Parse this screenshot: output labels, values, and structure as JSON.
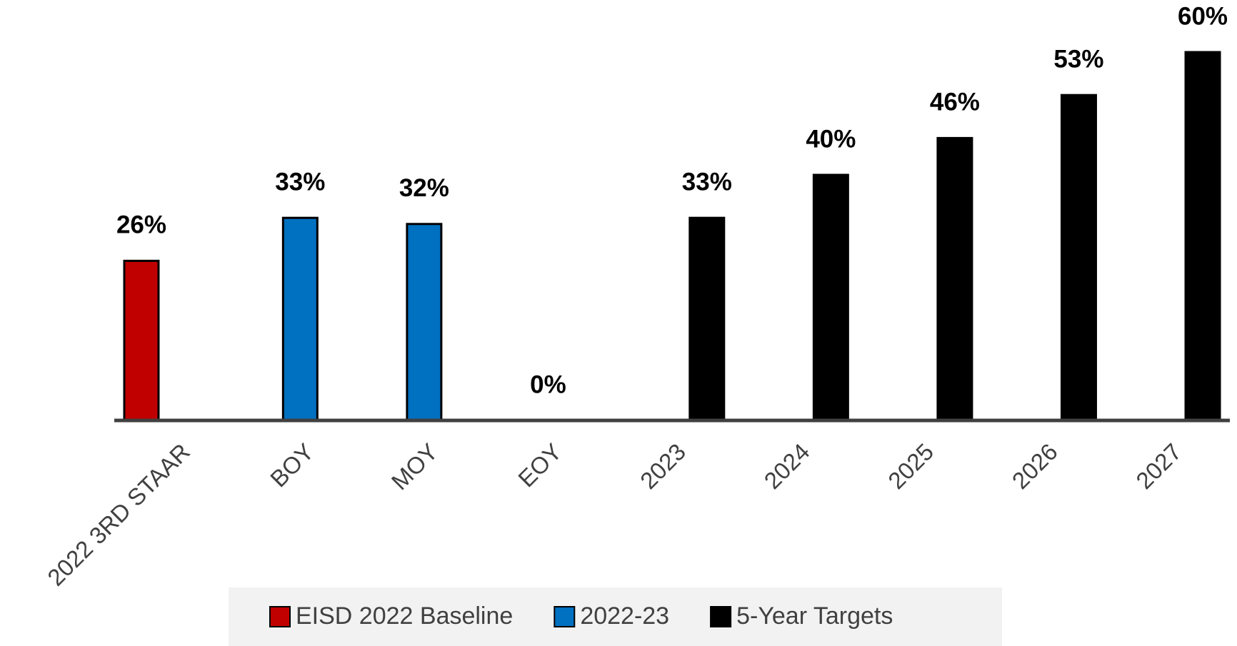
{
  "chart_data": {
    "type": "bar",
    "categories": [
      "2022 3RD STAAR",
      "BOY",
      "MOY",
      "EOY",
      "2023",
      "2024",
      "2025",
      "2026",
      "2027"
    ],
    "series": [
      {
        "name": "EISD 2022 Baseline",
        "color": "#c00000",
        "values": [
          26,
          null,
          null,
          null,
          null,
          null,
          null,
          null,
          null
        ],
        "value_labels": [
          "26%",
          null,
          null,
          null,
          null,
          null,
          null,
          null,
          null
        ]
      },
      {
        "name": "2022-23",
        "color": "#0070c0",
        "values": [
          null,
          33,
          32,
          0,
          null,
          null,
          null,
          null,
          null
        ],
        "value_labels": [
          null,
          "33%",
          "32%",
          "0%",
          null,
          null,
          null,
          null,
          null
        ]
      },
      {
        "name": "5-Year Targets",
        "color": "#000000",
        "values": [
          null,
          null,
          null,
          null,
          33,
          40,
          46,
          53,
          60
        ],
        "value_labels": [
          null,
          null,
          null,
          null,
          "33%",
          "40%",
          "46%",
          "53%",
          "60%"
        ]
      }
    ],
    "legend": "bottom"
  }
}
